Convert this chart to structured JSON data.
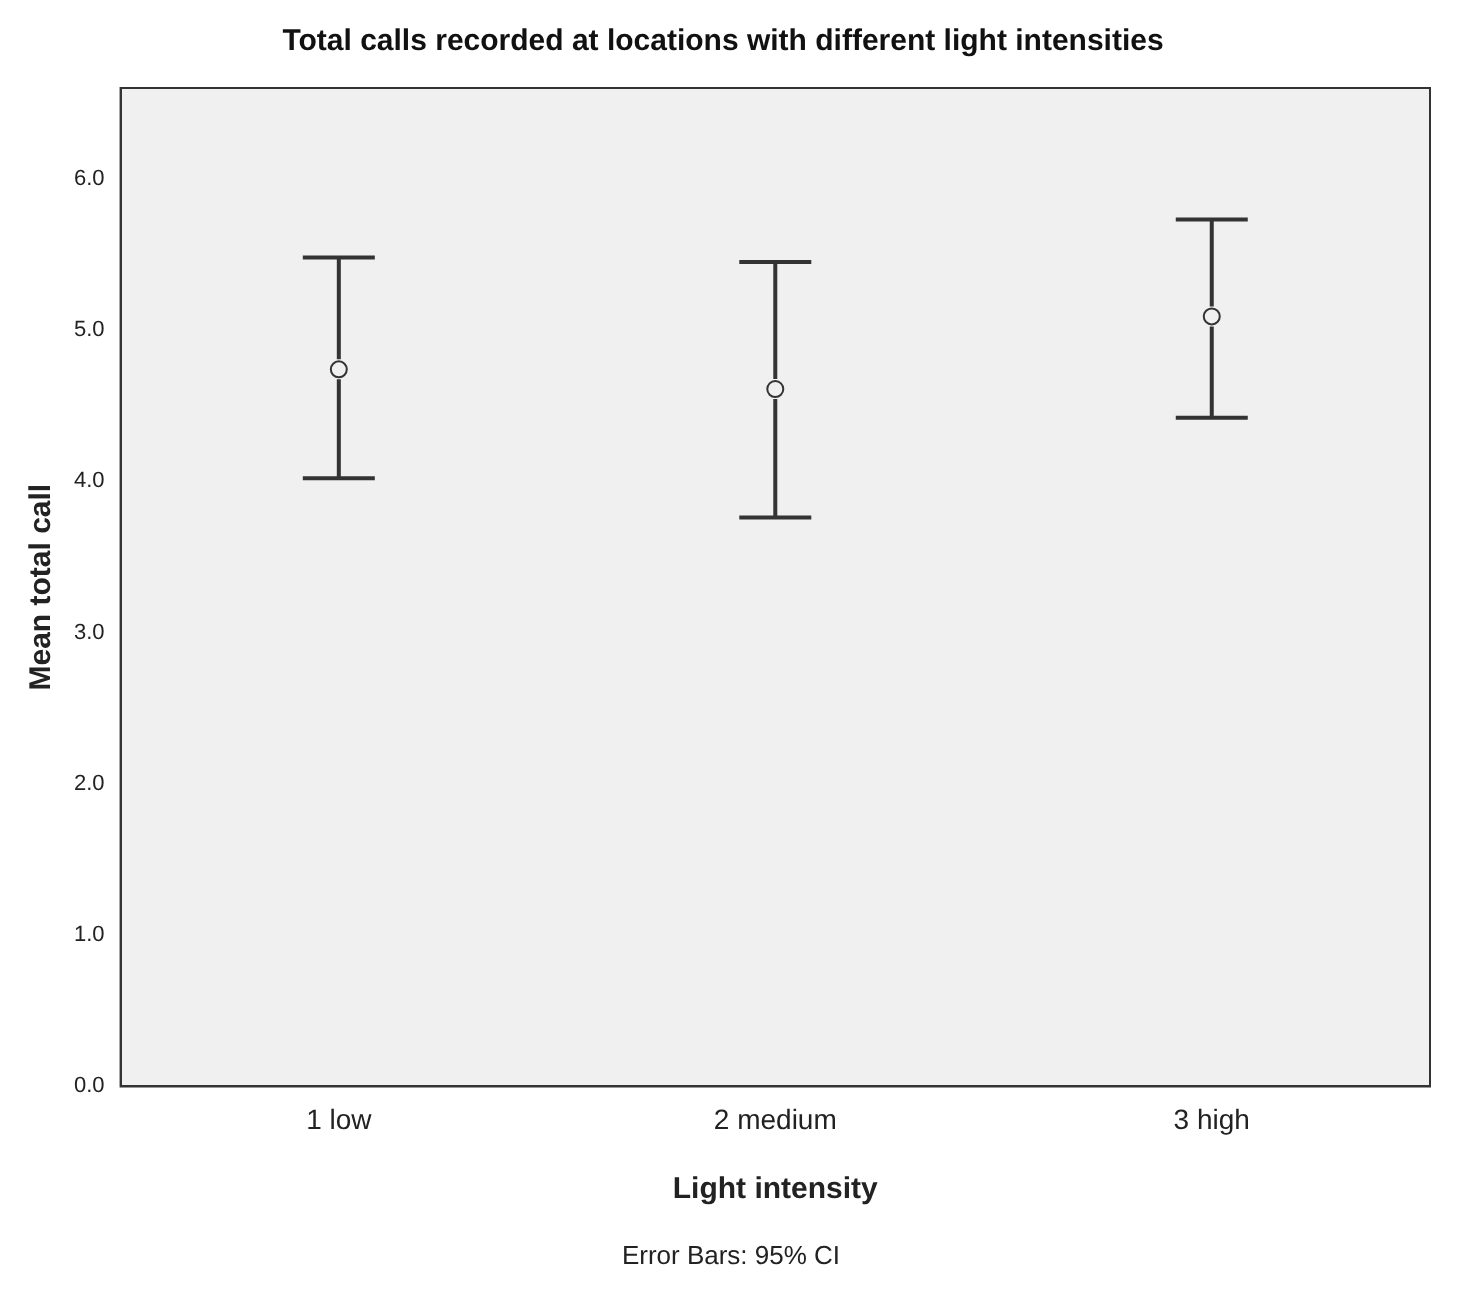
{
  "chart_data": {
    "type": "scatter",
    "title": "Total calls recorded at locations with different light intensities",
    "xlabel": "Light intensity",
    "ylabel": "Mean total call",
    "categories": [
      "1 low",
      "2 medium",
      "3 high"
    ],
    "values": [
      4.74,
      4.61,
      5.09
    ],
    "errors": [
      [
        4.02,
        5.48
      ],
      [
        3.76,
        5.45
      ],
      [
        4.42,
        5.73
      ]
    ],
    "color": "#333333",
    "marker": "circle",
    "ylim": [
      0,
      6.6
    ],
    "yticks": [
      {
        "value": 0,
        "label": "0.0"
      },
      {
        "value": 1,
        "label": "1.0"
      },
      {
        "value": 2,
        "label": "2.0"
      },
      {
        "value": 3,
        "label": "3.0"
      },
      {
        "value": 4,
        "label": "4.0"
      },
      {
        "value": 5,
        "label": "5.0"
      },
      {
        "value": 6,
        "label": "6.0"
      }
    ],
    "grid": false,
    "legend": false,
    "annotations": [
      "Error Bars: 95% CI"
    ]
  }
}
